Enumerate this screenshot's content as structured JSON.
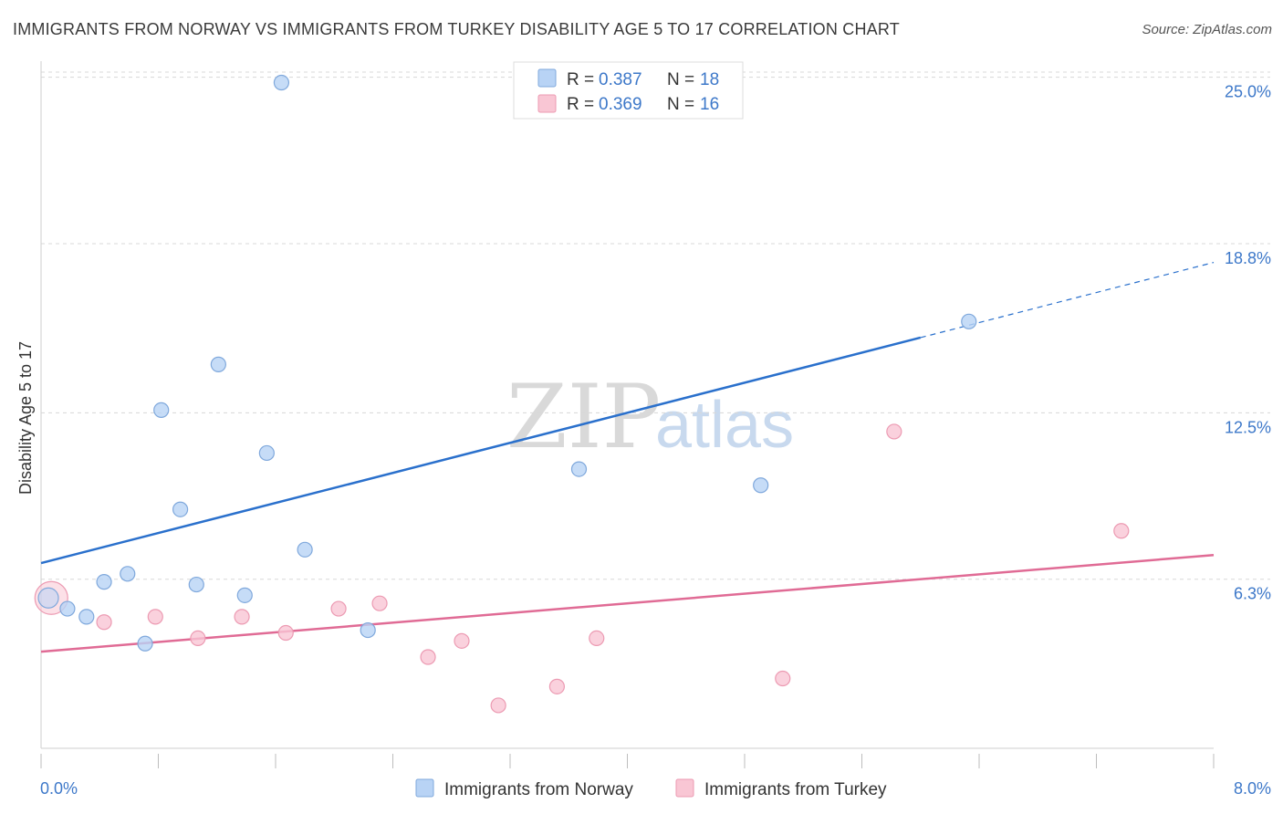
{
  "header": {
    "title": "IMMIGRANTS FROM NORWAY VS IMMIGRANTS FROM TURKEY DISABILITY AGE 5 TO 17 CORRELATION CHART",
    "source": "Source: ZipAtlas.com"
  },
  "watermark": {
    "zip": "ZIP",
    "atlas": "atlas"
  },
  "legend": {
    "r_label": "R = ",
    "n_label": "N = ",
    "rows": [
      {
        "r": "0.387",
        "n": "18"
      },
      {
        "r": "0.369",
        "n": "16"
      }
    ]
  },
  "colors": {
    "norway_fill": "#b8d3f5",
    "norway_stroke": "#7fa8dc",
    "norway_line": "#2a70cc",
    "turkey_fill": "#f9c6d4",
    "turkey_stroke": "#ec9ab2",
    "turkey_line": "#e06b95",
    "grid": "#d8d8d8",
    "tick_label": "#3d78c9"
  },
  "chart_data": {
    "type": "scatter",
    "title": "IMMIGRANTS FROM NORWAY VS IMMIGRANTS FROM TURKEY DISABILITY AGE 5 TO 17 CORRELATION CHART",
    "xlabel": "",
    "ylabel": "Disability Age 5 to 17",
    "xlim": [
      0,
      8
    ],
    "ylim": [
      0,
      25.6
    ],
    "x_tick_labels": [
      "0.0%",
      "8.0%"
    ],
    "y_ticks": [
      6.3,
      12.5,
      18.8,
      25.0
    ],
    "y_tick_labels": [
      "6.3%",
      "12.5%",
      "18.8%",
      "25.0%"
    ],
    "series": [
      {
        "name": "Immigrants from Norway",
        "r": 0.387,
        "n": 18,
        "points": [
          {
            "x": 0.05,
            "y": 5.6
          },
          {
            "x": 0.18,
            "y": 5.2
          },
          {
            "x": 0.31,
            "y": 4.9
          },
          {
            "x": 0.43,
            "y": 6.2
          },
          {
            "x": 0.59,
            "y": 6.5
          },
          {
            "x": 0.71,
            "y": 3.9
          },
          {
            "x": 0.82,
            "y": 12.6
          },
          {
            "x": 0.95,
            "y": 8.9
          },
          {
            "x": 1.06,
            "y": 6.1
          },
          {
            "x": 1.21,
            "y": 14.3
          },
          {
            "x": 1.39,
            "y": 5.7
          },
          {
            "x": 1.54,
            "y": 11.0
          },
          {
            "x": 1.64,
            "y": 24.8
          },
          {
            "x": 1.8,
            "y": 7.4
          },
          {
            "x": 2.23,
            "y": 4.4
          },
          {
            "x": 3.67,
            "y": 10.4
          },
          {
            "x": 4.91,
            "y": 9.8
          },
          {
            "x": 6.33,
            "y": 15.9
          }
        ],
        "trend": {
          "x0": 0.0,
          "y0": 6.9,
          "x1": 6.0,
          "y1": 15.3,
          "dashed_to_x": 8.0,
          "dashed_to_y": 18.1
        }
      },
      {
        "name": "Immigrants from Turkey",
        "r": 0.369,
        "n": 16,
        "points": [
          {
            "x": 0.07,
            "y": 5.6
          },
          {
            "x": 0.43,
            "y": 4.7
          },
          {
            "x": 0.78,
            "y": 4.9
          },
          {
            "x": 1.07,
            "y": 4.1
          },
          {
            "x": 1.37,
            "y": 4.9
          },
          {
            "x": 1.67,
            "y": 4.3
          },
          {
            "x": 2.03,
            "y": 5.2
          },
          {
            "x": 2.31,
            "y": 5.4
          },
          {
            "x": 2.64,
            "y": 3.4
          },
          {
            "x": 2.87,
            "y": 4.0
          },
          {
            "x": 3.12,
            "y": 1.6
          },
          {
            "x": 3.52,
            "y": 2.3
          },
          {
            "x": 3.79,
            "y": 4.1
          },
          {
            "x": 5.06,
            "y": 2.6
          },
          {
            "x": 5.82,
            "y": 11.8
          },
          {
            "x": 7.37,
            "y": 8.1
          }
        ],
        "trend": {
          "x0": 0.0,
          "y0": 3.6,
          "x1": 8.0,
          "y1": 7.2
        }
      }
    ],
    "legend_position": "top-center",
    "grid": true
  }
}
